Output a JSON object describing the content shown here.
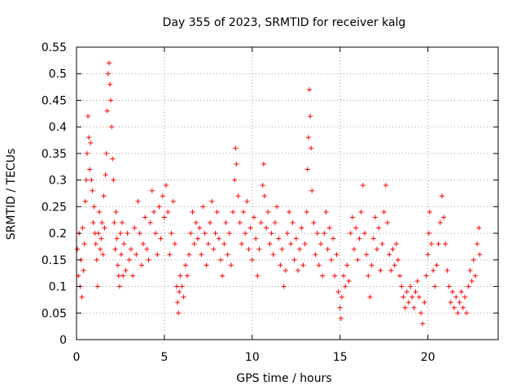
{
  "chart_data": {
    "type": "scatter",
    "title": "Day 355 of 2023, SRMTID for receiver kalg",
    "xlabel": "GPS time / hours",
    "ylabel": "SRMTID / TECUs",
    "xlim": [
      0,
      24.0
    ],
    "ylim": [
      0,
      0.55
    ],
    "x_ticks": [
      0,
      5,
      10,
      15,
      20
    ],
    "x_tick_labels": [
      "0",
      "5",
      "10",
      "15",
      "20"
    ],
    "y_ticks": [
      0,
      0.05,
      0.1,
      0.15,
      0.2,
      0.25,
      0.3,
      0.35,
      0.4,
      0.45,
      0.5,
      0.55
    ],
    "y_tick_labels": [
      "0",
      "0.05",
      "0.1",
      "0.15",
      "0.2",
      "0.25",
      "0.3",
      "0.35",
      "0.4",
      "0.45",
      "0.5",
      "0.55"
    ],
    "grid": true,
    "marker": "plus",
    "color": "#ff0000",
    "series": [
      {
        "name": "SRMTID",
        "points": [
          [
            0.05,
            0.17
          ],
          [
            0.1,
            0.12
          ],
          [
            0.15,
            0.2
          ],
          [
            0.2,
            0.1
          ],
          [
            0.25,
            0.15
          ],
          [
            0.3,
            0.08
          ],
          [
            0.35,
            0.21
          ],
          [
            0.4,
            0.13
          ],
          [
            0.45,
            0.18
          ],
          [
            0.5,
            0.26
          ],
          [
            0.55,
            0.3
          ],
          [
            0.6,
            0.35
          ],
          [
            0.65,
            0.42
          ],
          [
            0.7,
            0.38
          ],
          [
            0.75,
            0.32
          ],
          [
            0.8,
            0.37
          ],
          [
            0.85,
            0.3
          ],
          [
            0.9,
            0.28
          ],
          [
            0.95,
            0.22
          ],
          [
            1.0,
            0.25
          ],
          [
            1.05,
            0.2
          ],
          [
            1.1,
            0.18
          ],
          [
            1.15,
            0.15
          ],
          [
            1.2,
            0.1
          ],
          [
            1.25,
            0.2
          ],
          [
            1.3,
            0.24
          ],
          [
            1.35,
            0.17
          ],
          [
            1.4,
            0.19
          ],
          [
            1.45,
            0.22
          ],
          [
            1.5,
            0.16
          ],
          [
            1.55,
            0.27
          ],
          [
            1.6,
            0.21
          ],
          [
            1.65,
            0.31
          ],
          [
            1.7,
            0.35
          ],
          [
            1.75,
            0.43
          ],
          [
            1.8,
            0.5
          ],
          [
            1.85,
            0.52
          ],
          [
            1.9,
            0.48
          ],
          [
            1.95,
            0.45
          ],
          [
            2.0,
            0.4
          ],
          [
            2.05,
            0.34
          ],
          [
            2.1,
            0.3
          ],
          [
            2.15,
            0.22
          ],
          [
            2.2,
            0.17
          ],
          [
            2.25,
            0.24
          ],
          [
            2.3,
            0.19
          ],
          [
            2.35,
            0.14
          ],
          [
            2.4,
            0.12
          ],
          [
            2.45,
            0.1
          ],
          [
            2.5,
            0.2
          ],
          [
            2.55,
            0.16
          ],
          [
            2.6,
            0.22
          ],
          [
            2.65,
            0.12
          ],
          [
            2.7,
            0.18
          ],
          [
            2.8,
            0.13
          ],
          [
            2.9,
            0.2
          ],
          [
            3.0,
            0.15
          ],
          [
            3.1,
            0.17
          ],
          [
            3.2,
            0.12
          ],
          [
            3.3,
            0.21
          ],
          [
            3.4,
            0.16
          ],
          [
            3.5,
            0.26
          ],
          [
            3.6,
            0.2
          ],
          [
            3.7,
            0.14
          ],
          [
            3.8,
            0.18
          ],
          [
            3.9,
            0.23
          ],
          [
            4.0,
            0.17
          ],
          [
            4.1,
            0.15
          ],
          [
            4.2,
            0.22
          ],
          [
            4.3,
            0.28
          ],
          [
            4.4,
            0.24
          ],
          [
            4.5,
            0.2
          ],
          [
            4.6,
            0.16
          ],
          [
            4.7,
            0.25
          ],
          [
            4.8,
            0.19
          ],
          [
            4.9,
            0.27
          ],
          [
            5.0,
            0.23
          ],
          [
            5.1,
            0.29
          ],
          [
            5.2,
            0.24
          ],
          [
            5.3,
            0.16
          ],
          [
            5.4,
            0.2
          ],
          [
            5.5,
            0.26
          ],
          [
            5.6,
            0.18
          ],
          [
            5.7,
            0.1
          ],
          [
            5.75,
            0.07
          ],
          [
            5.8,
            0.05
          ],
          [
            5.85,
            0.09
          ],
          [
            5.9,
            0.12
          ],
          [
            6.0,
            0.1
          ],
          [
            6.1,
            0.08
          ],
          [
            6.2,
            0.14
          ],
          [
            6.3,
            0.12
          ],
          [
            6.4,
            0.16
          ],
          [
            6.5,
            0.2
          ],
          [
            6.6,
            0.24
          ],
          [
            6.7,
            0.18
          ],
          [
            6.8,
            0.22
          ],
          [
            6.9,
            0.19
          ],
          [
            7.0,
            0.21
          ],
          [
            7.1,
            0.16
          ],
          [
            7.2,
            0.25
          ],
          [
            7.3,
            0.2
          ],
          [
            7.4,
            0.14
          ],
          [
            7.5,
            0.18
          ],
          [
            7.6,
            0.22
          ],
          [
            7.7,
            0.26
          ],
          [
            7.8,
            0.17
          ],
          [
            7.9,
            0.2
          ],
          [
            8.0,
            0.24
          ],
          [
            8.1,
            0.19
          ],
          [
            8.2,
            0.15
          ],
          [
            8.3,
            0.12
          ],
          [
            8.4,
            0.18
          ],
          [
            8.5,
            0.22
          ],
          [
            8.6,
            0.16
          ],
          [
            8.7,
            0.2
          ],
          [
            8.8,
            0.14
          ],
          [
            8.9,
            0.24
          ],
          [
            9.0,
            0.3
          ],
          [
            9.05,
            0.36
          ],
          [
            9.1,
            0.33
          ],
          [
            9.2,
            0.27
          ],
          [
            9.3,
            0.22
          ],
          [
            9.4,
            0.18
          ],
          [
            9.5,
            0.24
          ],
          [
            9.6,
            0.2
          ],
          [
            9.7,
            0.26
          ],
          [
            9.8,
            0.17
          ],
          [
            9.9,
            0.21
          ],
          [
            10.0,
            0.15
          ],
          [
            10.1,
            0.23
          ],
          [
            10.2,
            0.19
          ],
          [
            10.3,
            0.12
          ],
          [
            10.4,
            0.17
          ],
          [
            10.5,
            0.22
          ],
          [
            10.6,
            0.29
          ],
          [
            10.65,
            0.33
          ],
          [
            10.7,
            0.27
          ],
          [
            10.8,
            0.21
          ],
          [
            10.9,
            0.24
          ],
          [
            11.0,
            0.18
          ],
          [
            11.1,
            0.2
          ],
          [
            11.2,
            0.16
          ],
          [
            11.3,
            0.22
          ],
          [
            11.4,
            0.25
          ],
          [
            11.5,
            0.19
          ],
          [
            11.6,
            0.14
          ],
          [
            11.7,
            0.17
          ],
          [
            11.8,
            0.1
          ],
          [
            11.9,
            0.13
          ],
          [
            12.0,
            0.2
          ],
          [
            12.1,
            0.24
          ],
          [
            12.2,
            0.18
          ],
          [
            12.3,
            0.22
          ],
          [
            12.4,
            0.15
          ],
          [
            12.5,
            0.19
          ],
          [
            12.6,
            0.13
          ],
          [
            12.7,
            0.17
          ],
          [
            12.8,
            0.21
          ],
          [
            12.9,
            0.14
          ],
          [
            13.0,
            0.18
          ],
          [
            13.1,
            0.24
          ],
          [
            13.15,
            0.32
          ],
          [
            13.2,
            0.38
          ],
          [
            13.25,
            0.47
          ],
          [
            13.3,
            0.42
          ],
          [
            13.35,
            0.36
          ],
          [
            13.4,
            0.28
          ],
          [
            13.5,
            0.22
          ],
          [
            13.6,
            0.16
          ],
          [
            13.7,
            0.2
          ],
          [
            13.8,
            0.14
          ],
          [
            13.9,
            0.18
          ],
          [
            14.0,
            0.12
          ],
          [
            14.1,
            0.2
          ],
          [
            14.2,
            0.24
          ],
          [
            14.3,
            0.17
          ],
          [
            14.4,
            0.21
          ],
          [
            14.5,
            0.15
          ],
          [
            14.6,
            0.19
          ],
          [
            14.7,
            0.12
          ],
          [
            14.8,
            0.16
          ],
          [
            14.9,
            0.09
          ],
          [
            15.0,
            0.06
          ],
          [
            15.05,
            0.04
          ],
          [
            15.1,
            0.08
          ],
          [
            15.2,
            0.12
          ],
          [
            15.3,
            0.1
          ],
          [
            15.4,
            0.14
          ],
          [
            15.5,
            0.11
          ],
          [
            15.6,
            0.2
          ],
          [
            15.7,
            0.23
          ],
          [
            15.8,
            0.17
          ],
          [
            15.9,
            0.21
          ],
          [
            16.0,
            0.15
          ],
          [
            16.1,
            0.19
          ],
          [
            16.2,
            0.24
          ],
          [
            16.3,
            0.29
          ],
          [
            16.4,
            0.2
          ],
          [
            16.5,
            0.16
          ],
          [
            16.6,
            0.12
          ],
          [
            16.7,
            0.08
          ],
          [
            16.8,
            0.14
          ],
          [
            16.9,
            0.19
          ],
          [
            17.0,
            0.23
          ],
          [
            17.1,
            0.17
          ],
          [
            17.2,
            0.21
          ],
          [
            17.3,
            0.13
          ],
          [
            17.4,
            0.18
          ],
          [
            17.5,
            0.24
          ],
          [
            17.6,
            0.29
          ],
          [
            17.7,
            0.22
          ],
          [
            17.8,
            0.16
          ],
          [
            17.9,
            0.13
          ],
          [
            18.0,
            0.17
          ],
          [
            18.1,
            0.14
          ],
          [
            18.2,
            0.18
          ],
          [
            18.3,
            0.15
          ],
          [
            18.4,
            0.12
          ],
          [
            18.5,
            0.1
          ],
          [
            18.6,
            0.08
          ],
          [
            18.7,
            0.06
          ],
          [
            18.8,
            0.09
          ],
          [
            18.9,
            0.07
          ],
          [
            19.0,
            0.1
          ],
          [
            19.1,
            0.08
          ],
          [
            19.2,
            0.06
          ],
          [
            19.3,
            0.09
          ],
          [
            19.4,
            0.11
          ],
          [
            19.5,
            0.08
          ],
          [
            19.6,
            0.05
          ],
          [
            19.7,
            0.03
          ],
          [
            19.8,
            0.07
          ],
          [
            19.9,
            0.12
          ],
          [
            20.0,
            0.16
          ],
          [
            20.05,
            0.2
          ],
          [
            20.1,
            0.24
          ],
          [
            20.2,
            0.18
          ],
          [
            20.3,
            0.13
          ],
          [
            20.4,
            0.1
          ],
          [
            20.5,
            0.14
          ],
          [
            20.6,
            0.18
          ],
          [
            20.7,
            0.22
          ],
          [
            20.8,
            0.27
          ],
          [
            20.9,
            0.23
          ],
          [
            21.0,
            0.18
          ],
          [
            21.1,
            0.13
          ],
          [
            21.2,
            0.1
          ],
          [
            21.3,
            0.07
          ],
          [
            21.4,
            0.09
          ],
          [
            21.5,
            0.06
          ],
          [
            21.6,
            0.08
          ],
          [
            21.7,
            0.05
          ],
          [
            21.8,
            0.07
          ],
          [
            21.9,
            0.09
          ],
          [
            22.0,
            0.06
          ],
          [
            22.1,
            0.08
          ],
          [
            22.2,
            0.05
          ],
          [
            22.3,
            0.1
          ],
          [
            22.4,
            0.13
          ],
          [
            22.5,
            0.11
          ],
          [
            22.6,
            0.15
          ],
          [
            22.7,
            0.12
          ],
          [
            22.8,
            0.18
          ],
          [
            22.9,
            0.21
          ],
          [
            22.95,
            0.16
          ]
        ]
      }
    ]
  }
}
